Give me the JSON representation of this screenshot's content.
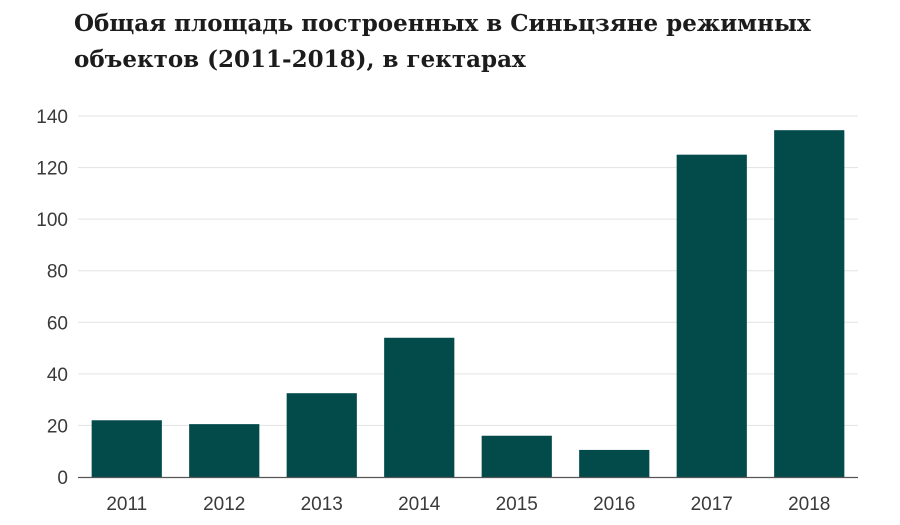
{
  "chart_data": {
    "type": "bar",
    "title": "Общая площадь построенных в Синьцзяне режимных объектов (2011-2018), в гектарах",
    "xlabel": "",
    "ylabel": "",
    "categories": [
      "2011",
      "2012",
      "2013",
      "2014",
      "2015",
      "2016",
      "2017",
      "2018"
    ],
    "values": [
      22,
      20.5,
      32.5,
      54,
      16,
      10.5,
      125,
      134.5
    ],
    "ylim": [
      0,
      140
    ],
    "yticks": [
      "0",
      "20",
      "40",
      "60",
      "80",
      "100",
      "120",
      "140"
    ],
    "grid": true,
    "legend": "none",
    "bar_color": "#034a4a"
  }
}
